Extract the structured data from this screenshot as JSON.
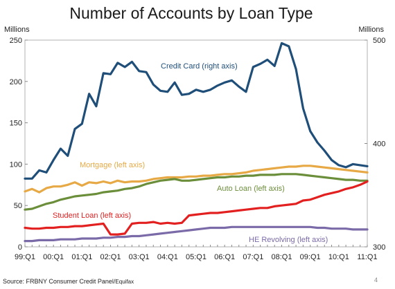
{
  "chart_data": {
    "type": "line",
    "title": "Number of Accounts by Loan Type",
    "left_axis": {
      "unit": "Millions",
      "ylim": [
        0,
        250
      ],
      "ticks": [
        "0",
        "50",
        "100",
        "150",
        "200",
        "250"
      ]
    },
    "right_axis": {
      "unit": "Millions",
      "ylim": [
        300,
        500
      ],
      "ticks": [
        "300",
        "400",
        "500"
      ]
    },
    "x_categories": [
      "99:Q1",
      "99:Q2",
      "99:Q3",
      "99:Q4",
      "00:Q1",
      "00:Q2",
      "00:Q3",
      "00:Q4",
      "01:Q1",
      "01:Q2",
      "01:Q3",
      "01:Q4",
      "02:Q1",
      "02:Q2",
      "02:Q3",
      "02:Q4",
      "03:Q1",
      "03:Q2",
      "03:Q3",
      "03:Q4",
      "04:Q1",
      "04:Q2",
      "04:Q3",
      "04:Q4",
      "05:Q1",
      "05:Q2",
      "05:Q3",
      "05:Q4",
      "06:Q1",
      "06:Q2",
      "06:Q3",
      "06:Q4",
      "07:Q1",
      "07:Q2",
      "07:Q3",
      "07:Q4",
      "08:Q1",
      "08:Q2",
      "08:Q3",
      "08:Q4",
      "09:Q1",
      "09:Q2",
      "09:Q3",
      "09:Q4",
      "10:Q1",
      "10:Q2",
      "10:Q3",
      "10:Q4",
      "11:Q1"
    ],
    "x_tick_labels": [
      "99:Q1",
      "00:Q1",
      "01:Q1",
      "02:Q1",
      "03:Q1",
      "04:Q1",
      "05:Q1",
      "06:Q1",
      "07:Q1",
      "08:Q1",
      "09:Q1",
      "10:Q1",
      "11:Q1"
    ],
    "series": [
      {
        "name": "Credit Card (right axis)",
        "axis": "right",
        "color": "#1f4e79",
        "values": [
          366,
          366,
          374,
          372,
          384,
          395,
          388,
          414,
          419,
          448,
          436,
          468,
          467,
          478,
          474,
          479,
          470,
          469,
          457,
          451,
          450,
          459,
          447,
          448,
          452,
          450,
          452,
          456,
          459,
          461,
          455,
          450,
          474,
          477,
          481,
          475,
          497,
          494,
          472,
          434,
          412,
          401,
          393,
          384,
          379,
          377,
          380,
          379,
          378
        ]
      },
      {
        "name": "Mortgage (left axis)",
        "axis": "left",
        "color": "#e6a945",
        "values": [
          67,
          70,
          66,
          71,
          73,
          73,
          75,
          78,
          74,
          78,
          77,
          79,
          77,
          80,
          78,
          79,
          79,
          80,
          82,
          83,
          84,
          84,
          84,
          85,
          85,
          86,
          86,
          87,
          88,
          88,
          89,
          90,
          92,
          93,
          94,
          95,
          96,
          97,
          97,
          98,
          98,
          97,
          96,
          95,
          94,
          93,
          92,
          91,
          90
        ]
      },
      {
        "name": "Auto Loan (left axis)",
        "axis": "left",
        "color": "#6b8e3a",
        "values": [
          45,
          46,
          49,
          52,
          54,
          57,
          59,
          61,
          62,
          63,
          64,
          66,
          67,
          68,
          70,
          71,
          73,
          76,
          78,
          80,
          81,
          82,
          80,
          80,
          81,
          82,
          83,
          84,
          84,
          85,
          85,
          86,
          86,
          87,
          87,
          87,
          88,
          88,
          88,
          87,
          86,
          85,
          84,
          83,
          82,
          81,
          81,
          80,
          80
        ]
      },
      {
        "name": "Student Loan (left axis)",
        "axis": "left",
        "color": "#e32020",
        "values": [
          23,
          22,
          22,
          23,
          23,
          24,
          24,
          25,
          25,
          26,
          27,
          28,
          15,
          15,
          16,
          28,
          29,
          29,
          30,
          28,
          29,
          28,
          29,
          38,
          39,
          40,
          41,
          41,
          42,
          43,
          44,
          45,
          46,
          47,
          47,
          49,
          50,
          51,
          52,
          56,
          57,
          60,
          63,
          65,
          67,
          70,
          72,
          75,
          79
        ]
      },
      {
        "name": "HE Revolving (left axis)",
        "axis": "left",
        "color": "#7b6aa8",
        "values": [
          7,
          7,
          8,
          8,
          8,
          9,
          9,
          9,
          10,
          10,
          10,
          11,
          11,
          12,
          12,
          13,
          13,
          14,
          15,
          16,
          17,
          18,
          19,
          20,
          21,
          22,
          23,
          23,
          23,
          24,
          24,
          24,
          24,
          24,
          24,
          24,
          24,
          24,
          24,
          24,
          24,
          23,
          23,
          22,
          22,
          22,
          21,
          21,
          21
        ]
      }
    ],
    "annotations": [
      "Credit Card (right axis)",
      "Mortgage (left axis)",
      "Auto Loan (left axis)",
      "Student Loan (left axis)",
      "HE Revolving (left axis)"
    ],
    "grid": false,
    "legend": "inline labels"
  },
  "footer": {
    "source": "Source: FRBNY Consumer Credit Panel/",
    "source_brand": "Equifax",
    "page_number": "4"
  }
}
